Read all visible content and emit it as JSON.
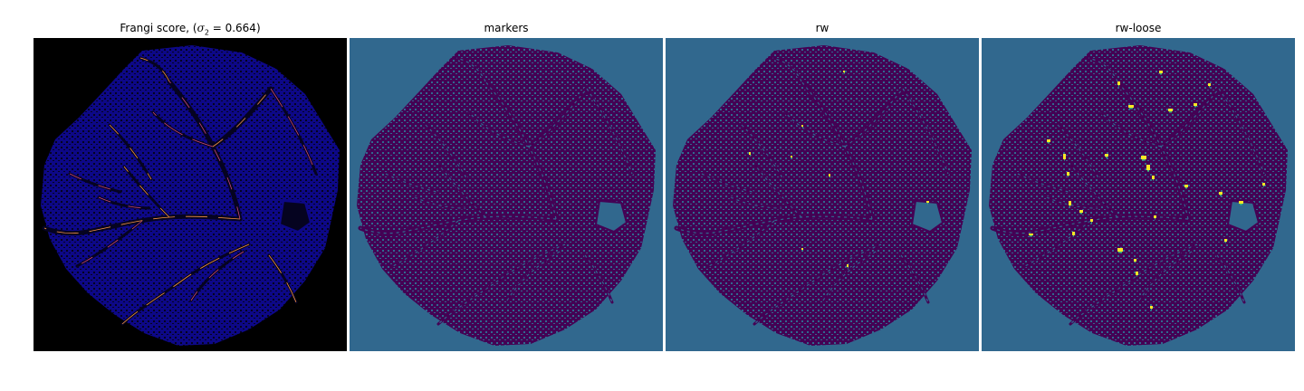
{
  "figure": {
    "panels": [
      {
        "id": "frangi",
        "title_prefix": "Frangi score, (",
        "title_math": "σ",
        "title_sub": "2",
        "title_suffix": " = 0.664)"
      },
      {
        "id": "markers",
        "title": "markers"
      },
      {
        "id": "rw",
        "title": "rw"
      },
      {
        "id": "rw-loose",
        "title": "rw-loose"
      }
    ],
    "colors": {
      "frangi_background": "#000000",
      "frangi_tissue": "#0d0887",
      "frangi_vessel_highlight": "#f89540",
      "frangi_vessel_mid": "#cc4778",
      "marker_background": "#31688e",
      "marker_tissue": "#440154",
      "marker_detected": "#fde725",
      "marker_detected_mid": "#35b779"
    }
  }
}
